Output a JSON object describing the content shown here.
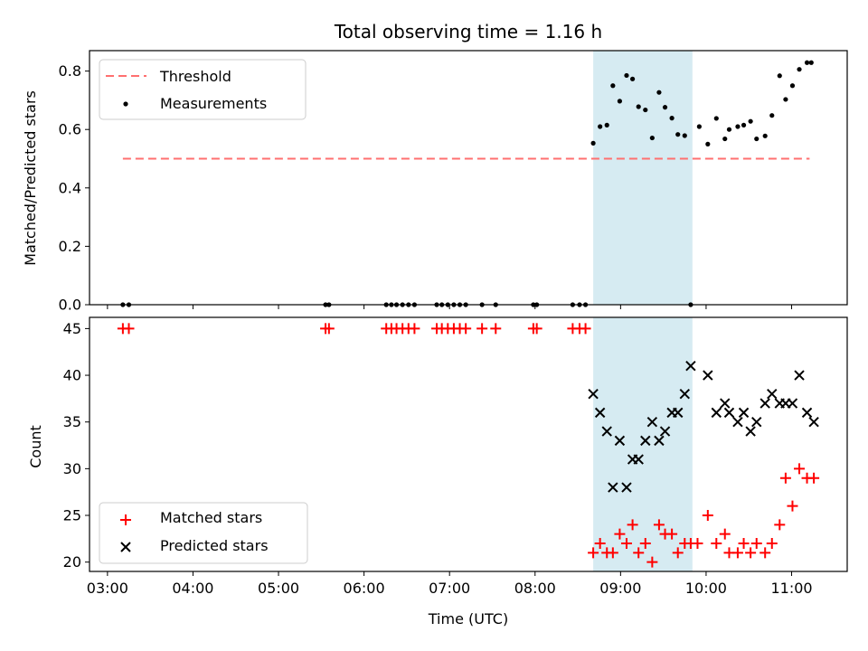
{
  "chart_data": [
    {
      "type": "scatter",
      "title": "Total observing time = 1.16 h",
      "xlabel": "",
      "ylabel": "Matched/Predicted stars",
      "ylim": [
        0,
        0.87
      ],
      "yticks": [
        0.0,
        0.2,
        0.4,
        0.6,
        0.8
      ],
      "ytick_labels": [
        "0.0",
        "0.2",
        "0.4",
        "0.6",
        "0.8"
      ],
      "xlim": [
        2.79,
        11.65
      ],
      "xticks": [
        3,
        4,
        5,
        6,
        7,
        8,
        9,
        10,
        11
      ],
      "shaded_span": [
        8.68,
        9.84
      ],
      "shade_color": "#add8e6",
      "legend": {
        "loc": "upper left",
        "entries": [
          "Threshold",
          "Measurements"
        ]
      },
      "series": [
        {
          "name": "Threshold",
          "kind": "dashed-line",
          "color": "#ff7070",
          "x": [
            3.18,
            11.21
          ],
          "y": [
            0.5,
            0.5
          ]
        },
        {
          "name": "Measurements",
          "kind": "dots",
          "color": "#000000",
          "x": [
            3.18,
            3.25,
            5.55,
            5.59,
            6.26,
            6.32,
            6.38,
            6.45,
            6.52,
            6.59,
            6.85,
            6.91,
            6.98,
            7.05,
            7.12,
            7.19,
            7.38,
            7.54,
            7.98,
            8.02,
            8.44,
            8.52,
            8.59,
            8.68,
            8.76,
            8.84,
            8.91,
            8.99,
            9.07,
            9.14,
            9.21,
            9.29,
            9.37,
            9.45,
            9.52,
            9.6,
            9.67,
            9.75,
            9.82,
            9.92,
            10.02,
            10.12,
            10.22,
            10.27,
            10.37,
            10.44,
            10.52,
            10.59,
            10.69,
            10.77,
            10.86,
            10.93,
            11.01,
            11.09,
            11.18,
            11.23
          ],
          "y": [
            0,
            0,
            0,
            0,
            0,
            0,
            0,
            0,
            0,
            0,
            0,
            0,
            0,
            0,
            0,
            0,
            0,
            0,
            0,
            0,
            0,
            0,
            0,
            0.553,
            0.61,
            0.615,
            0.75,
            0.697,
            0.785,
            0.773,
            0.678,
            0.667,
            0.571,
            0.727,
            0.676,
            0.639,
            0.583,
            0.579,
            0,
            0.61,
            0.55,
            0.638,
            0.568,
            0.6,
            0.61,
            0.615,
            0.628,
            0.568,
            0.578,
            0.648,
            0.784,
            0.703,
            0.75,
            0.806,
            0.829,
            0.829
          ]
        }
      ]
    },
    {
      "type": "scatter",
      "title": "",
      "xlabel": "Time (UTC)",
      "ylabel": "Count",
      "ylim": [
        19,
        46.2
      ],
      "yticks": [
        20,
        25,
        30,
        35,
        40,
        45
      ],
      "ytick_labels": [
        "20",
        "25",
        "30",
        "35",
        "40",
        "45"
      ],
      "xlim": [
        2.79,
        11.65
      ],
      "xticks": [
        3,
        4,
        5,
        6,
        7,
        8,
        9,
        10,
        11
      ],
      "xtick_labels": [
        "03:00",
        "04:00",
        "05:00",
        "06:00",
        "07:00",
        "08:00",
        "09:00",
        "10:00",
        "11:00"
      ],
      "shaded_span": [
        8.68,
        9.84
      ],
      "shade_color": "#add8e6",
      "legend": {
        "loc": "lower left",
        "entries": [
          "Matched stars",
          "Predicted stars"
        ]
      },
      "series": [
        {
          "name": "Matched stars",
          "kind": "plus",
          "color": "#ff0000",
          "x": [
            3.18,
            3.25,
            5.55,
            5.59,
            6.26,
            6.32,
            6.38,
            6.45,
            6.52,
            6.59,
            6.85,
            6.91,
            6.98,
            7.05,
            7.12,
            7.19,
            7.38,
            7.54,
            7.98,
            8.02,
            8.44,
            8.52,
            8.59,
            8.68,
            8.76,
            8.84,
            8.91,
            8.99,
            9.07,
            9.14,
            9.21,
            9.29,
            9.37,
            9.45,
            9.52,
            9.6,
            9.67,
            9.75,
            9.82,
            9.9,
            10.02,
            10.12,
            10.22,
            10.27,
            10.37,
            10.44,
            10.52,
            10.59,
            10.69,
            10.77,
            10.86,
            10.93,
            11.01,
            11.09,
            11.18,
            11.26
          ],
          "y": [
            45,
            45,
            45,
            45,
            45,
            45,
            45,
            45,
            45,
            45,
            45,
            45,
            45,
            45,
            45,
            45,
            45,
            45,
            45,
            45,
            45,
            45,
            45,
            21,
            22,
            21,
            21,
            23,
            22,
            24,
            21,
            22,
            20,
            24,
            23,
            23,
            21,
            22,
            22,
            22,
            25,
            22,
            23,
            21,
            21,
            22,
            21,
            22,
            21,
            22,
            24,
            29,
            26,
            30,
            29,
            29
          ]
        },
        {
          "name": "Predicted stars",
          "kind": "cross",
          "color": "#000000",
          "x": [
            8.68,
            8.76,
            8.84,
            8.91,
            8.99,
            9.07,
            9.14,
            9.21,
            9.29,
            9.37,
            9.45,
            9.52,
            9.6,
            9.67,
            9.75,
            9.82,
            10.02,
            10.12,
            10.22,
            10.27,
            10.37,
            10.44,
            10.52,
            10.59,
            10.69,
            10.77,
            10.86,
            10.93,
            11.01,
            11.09,
            11.18,
            11.26
          ],
          "y": [
            38,
            36,
            34,
            28,
            33,
            28,
            31,
            31,
            33,
            35,
            33,
            34,
            36,
            36,
            38,
            41,
            40,
            36,
            37,
            36,
            35,
            36,
            34,
            35,
            37,
            38,
            37,
            37,
            37,
            40,
            36,
            35
          ]
        }
      ]
    }
  ]
}
